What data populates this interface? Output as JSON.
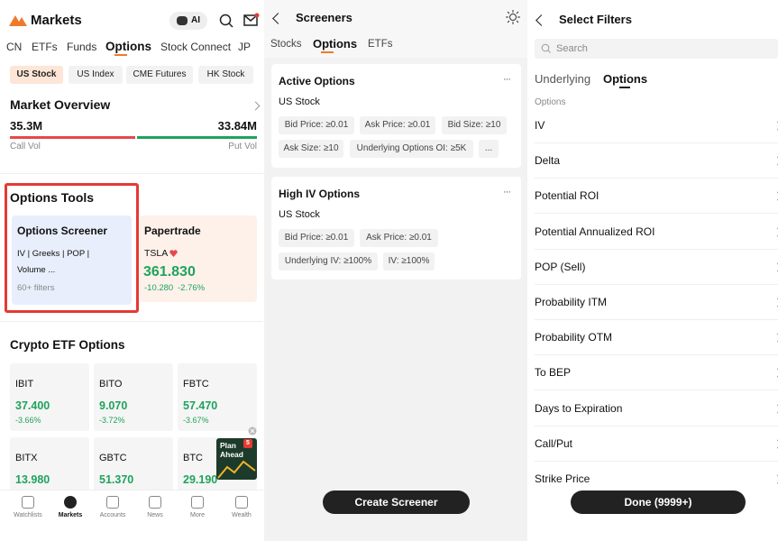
{
  "markets": {
    "title": "Markets",
    "ai": "AI",
    "tabs": [
      "CN",
      "ETFs",
      "Funds",
      "Options",
      "Stock Connect",
      "JP"
    ],
    "subtabs": [
      "US Stock",
      "US Index",
      "CME Futures",
      "HK Stock"
    ],
    "overview": {
      "title": "Market Overview",
      "call_value": "35.3M",
      "put_value": "33.84M",
      "call_label": "Call Vol",
      "put_label": "Put Vol"
    },
    "tools": {
      "title": "Options Tools",
      "screener": {
        "title": "Options Screener",
        "line1": "IV | Greeks | POP |",
        "line2": "Volume ...",
        "note": "60+ filters"
      },
      "papertrade": {
        "title": "Papertrade",
        "symbol": "TSLA",
        "price": "361.830",
        "change": "-10.280",
        "pct": "-2.76%"
      }
    },
    "crypto": {
      "title": "Crypto ETF Options",
      "cards": [
        {
          "symbol": "IBIT",
          "price": "37.400",
          "change": "-3.66%"
        },
        {
          "symbol": "BITO",
          "price": "9.070",
          "change": "-3.72%"
        },
        {
          "symbol": "FBTC",
          "price": "57.470",
          "change": "-3.67%"
        },
        {
          "symbol": "BITX",
          "price": "13.980"
        },
        {
          "symbol": "GBTC",
          "price": "51.370"
        },
        {
          "symbol": "BTC",
          "price": "29.190"
        }
      ]
    },
    "promo": {
      "text": "Plan Ahead",
      "badge": "5"
    },
    "nav": [
      "Watchlists",
      "Markets",
      "Accounts",
      "News",
      "More",
      "Wealth"
    ]
  },
  "screeners": {
    "title": "Screeners",
    "tabs": [
      "Stocks",
      "Options",
      "ETFs"
    ],
    "cards": [
      {
        "title": "Active Options",
        "market": "US Stock",
        "chips": [
          [
            "Bid Price: ≥0.01",
            "Ask Price: ≥0.01",
            "Bid Size: ≥10"
          ],
          [
            "Ask Size: ≥10",
            "Underlying Options OI: ≥5K",
            "..."
          ]
        ]
      },
      {
        "title": "High IV Options",
        "market": "US Stock",
        "chips": [
          [
            "Bid Price: ≥0.01",
            "Ask Price: ≥0.01"
          ],
          [
            "Underlying IV: ≥100%",
            "IV: ≥100%"
          ]
        ]
      }
    ],
    "button": "Create Screener"
  },
  "filters": {
    "title": "Select Filters",
    "search": "Search",
    "tabs": [
      "Underlying",
      "Options"
    ],
    "section": "Options",
    "items": [
      "IV",
      "Delta",
      "Potential ROI",
      "Potential Annualized ROI",
      "POP (Sell)",
      "Probability ITM",
      "Probability OTM",
      "To BEP",
      "Days to Expiration",
      "Call/Put",
      "Strike Price"
    ],
    "button": "Done (9999+)"
  }
}
